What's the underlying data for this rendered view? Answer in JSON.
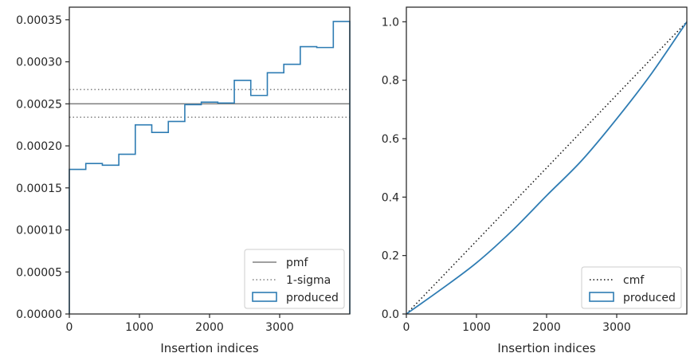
{
  "chart_data": [
    {
      "type": "histogram-step",
      "xlabel": "Insertion indices",
      "ylabel": "",
      "xlim": [
        0,
        4000
      ],
      "ylim": [
        0,
        0.000365
      ],
      "xticks": [
        0,
        1000,
        2000,
        3000
      ],
      "xtick_labels": [
        "0",
        "1000",
        "2000",
        "3000"
      ],
      "yticks": [
        0,
        5e-05,
        0.0001,
        0.00015,
        0.0002,
        0.00025,
        0.0003,
        0.00035
      ],
      "ytick_labels": [
        "0.00000",
        "0.00005",
        "0.00010",
        "0.00015",
        "0.00020",
        "0.00025",
        "0.00030",
        "0.00035"
      ],
      "bin_edges": [
        0,
        235,
        471,
        706,
        941,
        1176,
        1412,
        1647,
        1882,
        2118,
        2353,
        2588,
        2824,
        3059,
        3294,
        3529,
        3765,
        4000
      ],
      "series": [
        {
          "name": "produced",
          "values": [
            0.000172,
            0.000179,
            0.000177,
            0.00019,
            0.000225,
            0.000216,
            0.000229,
            0.000249,
            0.000252,
            0.000251,
            0.000278,
            0.00026,
            0.000287,
            0.000297,
            0.000318,
            0.000317,
            0.000348
          ],
          "color": "#2e7cb3"
        }
      ],
      "reference_lines": [
        {
          "name": "pmf",
          "y": 0.00025,
          "style": "solid",
          "color": "#808080"
        },
        {
          "name": "1-sigma",
          "y": 0.000267,
          "style": "dotted",
          "color": "#808080"
        },
        {
          "name": "",
          "y": 0.000234,
          "style": "dotted",
          "color": "#808080"
        }
      ],
      "legend": {
        "position": "lower-right",
        "entries": [
          {
            "label": "pmf",
            "kind": "solid-line",
            "color": "#808080"
          },
          {
            "label": "1-sigma",
            "kind": "dotted-line",
            "color": "#808080"
          },
          {
            "label": "produced",
            "kind": "patch",
            "color": "#2e7cb3"
          }
        ]
      }
    },
    {
      "type": "line",
      "xlabel": "Insertion indices",
      "ylabel": "",
      "xlim": [
        0,
        4000
      ],
      "ylim": [
        0,
        1.05
      ],
      "xticks": [
        0,
        1000,
        2000,
        3000
      ],
      "xtick_labels": [
        "0",
        "1000",
        "2000",
        "3000"
      ],
      "yticks": [
        0,
        0.2,
        0.4,
        0.6,
        0.8,
        1.0
      ],
      "ytick_labels": [
        "0.0",
        "0.2",
        "0.4",
        "0.6",
        "0.8",
        "1.0"
      ],
      "series": [
        {
          "name": "cmf",
          "style": "dotted",
          "color": "#111111",
          "x": [
            0,
            4000
          ],
          "y": [
            0,
            1.0
          ]
        },
        {
          "name": "produced",
          "style": "solid",
          "color": "#2e7cb3",
          "x": [
            0,
            500,
            1000,
            1500,
            2000,
            2500,
            3000,
            3500,
            4000
          ],
          "y": [
            0,
            0.085,
            0.175,
            0.283,
            0.405,
            0.525,
            0.668,
            0.824,
            1.0
          ]
        }
      ],
      "legend": {
        "position": "lower-right",
        "entries": [
          {
            "label": "cmf",
            "kind": "dotted-line",
            "color": "#111111"
          },
          {
            "label": "produced",
            "kind": "patch",
            "color": "#2e7cb3"
          }
        ]
      }
    }
  ]
}
